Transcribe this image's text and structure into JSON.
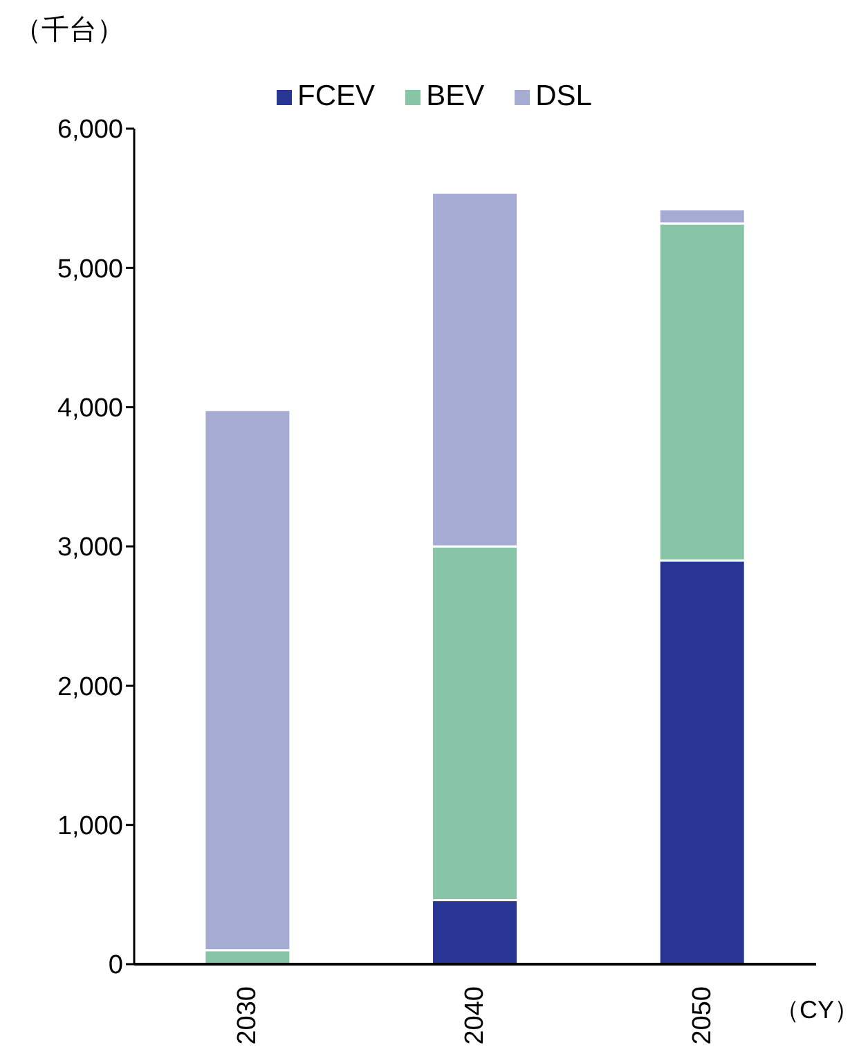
{
  "chart_data": {
    "type": "bar",
    "stacked": true,
    "ylabel": "（千台）",
    "annotations": [
      "（CY）"
    ],
    "categories": [
      "2030",
      "2040",
      "2050"
    ],
    "series": [
      {
        "name": "FCEV",
        "color": "#283593",
        "values": [
          0,
          460,
          2900
        ]
      },
      {
        "name": "BEV",
        "color": "#88c4a6",
        "values": [
          100,
          2540,
          2420
        ]
      },
      {
        "name": "DSL",
        "color": "#a5abd3",
        "values": [
          3880,
          2540,
          100
        ]
      }
    ],
    "ylim": [
      0,
      6000
    ],
    "yticks": [
      {
        "value": 0,
        "label": "0"
      },
      {
        "value": 1000,
        "label": "1,000"
      },
      {
        "value": 2000,
        "label": "2,000"
      },
      {
        "value": 3000,
        "label": "3,000"
      },
      {
        "value": 4000,
        "label": "4,000"
      },
      {
        "value": 5000,
        "label": "5,000"
      },
      {
        "value": 6000,
        "label": "6,000"
      }
    ],
    "grid": false,
    "legend": "top"
  }
}
